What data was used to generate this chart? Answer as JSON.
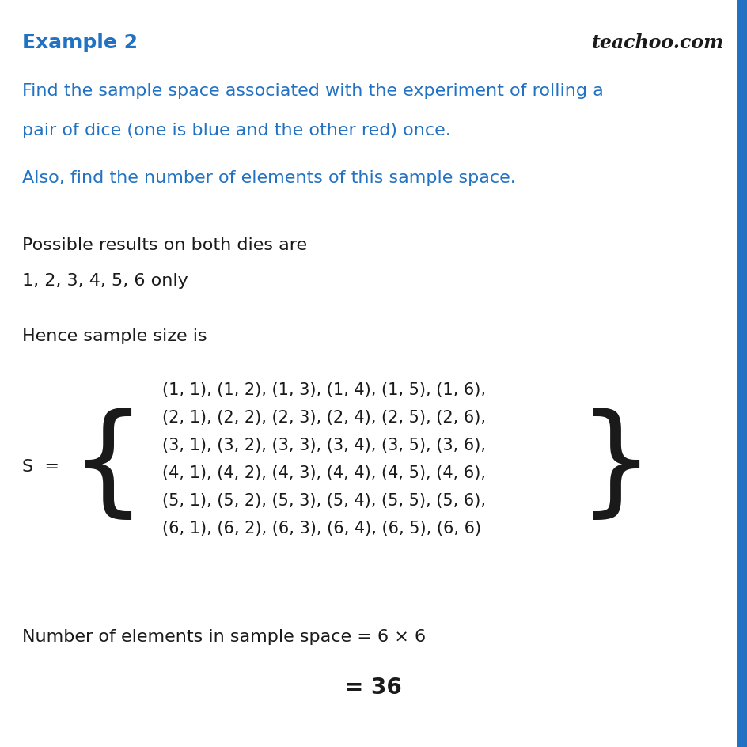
{
  "background_color": "#ffffff",
  "title": "Example 2",
  "title_color": "#2272C3",
  "title_fontsize": 18,
  "watermark": "teachoo.com",
  "watermark_color": "#1a1a1a",
  "blue_color": "#2272C3",
  "black_color": "#1a1a1a",
  "question_line1": "Find the sample space associated with the experiment of rolling a",
  "question_line2": "pair of dice (one is blue and the other red) once.",
  "question2": "Also, find the number of elements of this sample space.",
  "body_line1": "Possible results on both dies are",
  "body_line2": "1, 2, 3, 4, 5, 6 only",
  "body_line3": "Hence sample size is",
  "set_rows": [
    "(1, 1), (1, 2), (1, 3), (1, 4), (1, 5), (1, 6),",
    "(2, 1), (2, 2), (2, 3), (2, 4), (2, 5), (2, 6),",
    "(3, 1), (3, 2), (3, 3), (3, 4), (3, 5), (3, 6),",
    "(4, 1), (4, 2), (4, 3), (4, 4), (4, 5), (4, 6),",
    "(5, 1), (5, 2), (5, 3), (5, 4), (5, 5), (5, 6),",
    "(6, 1), (6, 2), (6, 3), (6, 4), (6, 5), (6, 6)"
  ],
  "s_label": "S  =",
  "footer_line1": "Number of elements in sample space = 6 × 6",
  "footer_line2": "= 36",
  "right_bar_color": "#2272C3",
  "body_fontsize": 16,
  "set_fontsize": 15,
  "brace_fontsize": 110
}
